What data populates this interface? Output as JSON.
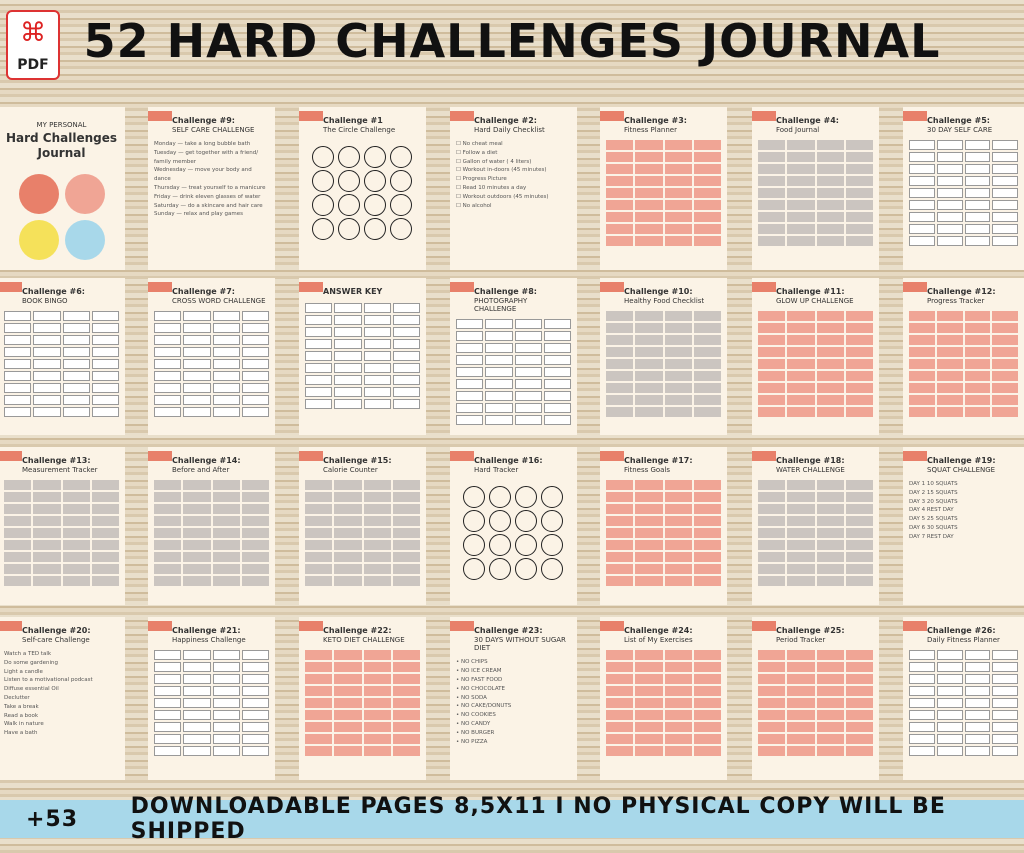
{
  "header": {
    "title": "52 HARD CHALLENGES JOURNAL",
    "pdf_label": "PDF"
  },
  "banner": {
    "count": "+53",
    "text": "DOWNLOADABLE PAGES 8,5X11  I  NO PHYSICAL COPY WILL BE SHIPPED"
  },
  "pages": [
    {
      "title": "Hard Challenges Journal",
      "subtitle": "MY PERSONAL",
      "type": "cover"
    },
    {
      "title": "Challenge #9:",
      "subtitle": "SELF CARE CHALLENGE",
      "type": "list",
      "items": [
        "Monday — take a long bubble bath",
        "Tuesday — get together with a friend/ family member",
        "Wednesday — move your body and dance",
        "Thursday — treat yourself to a manicure",
        "Friday — drink eleven glasses of water",
        "Saturday — do a skincare and hair care",
        "Sunday — relax and play games"
      ]
    },
    {
      "title": "Challenge #1",
      "subtitle": "The Circle Challenge",
      "type": "circles"
    },
    {
      "title": "Challenge #2:",
      "subtitle": "Hard Daily Checklist",
      "type": "list",
      "items": [
        "☐ No cheat meal",
        "☐ Follow a diet",
        "☐ Gallon of water ( 4 liters)",
        "☐ Workout in-doors (45 minutes)",
        "☐ Progress Picture",
        "☐ Read 10 minutes a day",
        "☐ Workout outdoors (45 minutes)",
        "☐ No alcohol"
      ]
    },
    {
      "title": "Challenge #3:",
      "subtitle": "Fitness Planner",
      "type": "pink"
    },
    {
      "title": "Challenge #4:",
      "subtitle": "Food Journal",
      "type": "gray"
    },
    {
      "title": "Challenge #5:",
      "subtitle": "30 DAY SELF CARE",
      "type": "box"
    },
    {
      "title": "Challenge #6:",
      "subtitle": "BOOK BINGO",
      "type": "box"
    },
    {
      "title": "Challenge #7:",
      "subtitle": "CROSS WORD CHALLENGE",
      "type": "box"
    },
    {
      "title": "ANSWER KEY",
      "subtitle": "",
      "type": "box"
    },
    {
      "title": "Challenge #8:",
      "subtitle": "PHOTOGRAPHY CHALLENGE",
      "type": "box"
    },
    {
      "title": "Challenge #10:",
      "subtitle": "Healthy Food Checklist",
      "type": "gray"
    },
    {
      "title": "Challenge #11:",
      "subtitle": "GLOW UP CHALLENGE",
      "type": "pink"
    },
    {
      "title": "Challenge #12:",
      "subtitle": "Progress Tracker",
      "type": "pink"
    },
    {
      "title": "Challenge #13:",
      "subtitle": "Measurement Tracker",
      "type": "gray"
    },
    {
      "title": "Challenge #14:",
      "subtitle": "Before and After",
      "type": "gray"
    },
    {
      "title": "Challenge #15:",
      "subtitle": "Calorie Counter",
      "type": "gray"
    },
    {
      "title": "Challenge #16:",
      "subtitle": "Hard Tracker",
      "type": "circles"
    },
    {
      "title": "Challenge #17:",
      "subtitle": "Fitness Goals",
      "type": "pink"
    },
    {
      "title": "Challenge #18:",
      "subtitle": "WATER CHALLENGE",
      "type": "gray"
    },
    {
      "title": "Challenge #19:",
      "subtitle": "SQUAT CHALLENGE",
      "type": "list",
      "items": [
        "DAY 1 10 SQUATS",
        "DAY 2 15 SQUATS",
        "DAY 3 20 SQUATS",
        "DAY 4 REST DAY",
        "DAY 5 25 SQUATS",
        "DAY 6 30 SQUATS",
        "DAY 7 REST DAY"
      ]
    },
    {
      "title": "Challenge #20:",
      "subtitle": "Self-care Challenge",
      "type": "list",
      "items": [
        "Watch a TED talk",
        "Do some gardening",
        "Light a candle",
        "Listen to a motivational podcast",
        "Diffuse essential Oil",
        "Declutter",
        "Take a break",
        "Read a book",
        "Walk in nature",
        "Have a bath"
      ]
    },
    {
      "title": "Challenge #21:",
      "subtitle": "Happiness Challenge",
      "type": "box"
    },
    {
      "title": "Challenge #22:",
      "subtitle": "KETO DIET CHALLENGE",
      "type": "pink"
    },
    {
      "title": "Challenge #23:",
      "subtitle": "30 DAYS WITHOUT SUGAR DIET",
      "type": "list",
      "items": [
        "• NO CHIPS",
        "• NO ICE CREAM",
        "• NO FAST FOOD",
        "• NO CHOCOLATE",
        "• NO SODA",
        "• NO CAKE/DONUTS",
        "• NO COOKIES",
        "• NO CANDY",
        "• NO BURGER",
        "• NO PIZZA"
      ]
    },
    {
      "title": "Challenge #24:",
      "subtitle": "List of My Exercises",
      "type": "pink"
    },
    {
      "title": "Challenge #25:",
      "subtitle": "Period Tracker",
      "type": "pink"
    },
    {
      "title": "Challenge #26:",
      "subtitle": "Daily Fitness Planner",
      "type": "box"
    }
  ]
}
